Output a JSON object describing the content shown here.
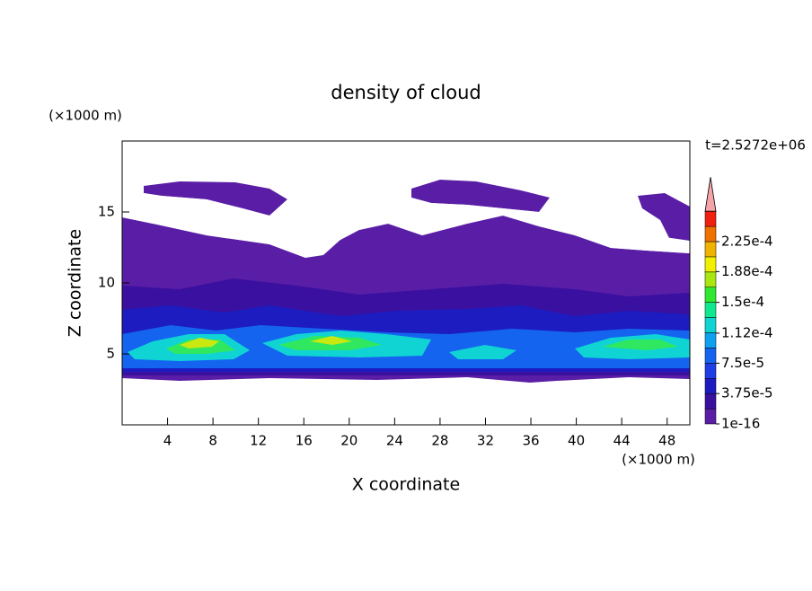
{
  "chart_data": {
    "type": "contour",
    "title": "density of cloud",
    "x_label": "X coordinate",
    "y_label": "Z coordinate",
    "x_unit": "(×1000 m)",
    "y_unit": "(×1000 m)",
    "time_label": "t=2.5272e+06",
    "xlim": [
      0,
      50
    ],
    "xticks": [
      4,
      8,
      12,
      16,
      20,
      24,
      28,
      32,
      36,
      40,
      44,
      48
    ],
    "ylim": [
      0,
      20
    ],
    "yticks": [
      5,
      10,
      15
    ],
    "colorbar": {
      "ticks": [
        {
          "value": 1e-16,
          "label": "1e-16"
        },
        {
          "value": 3.75e-05,
          "label": "3.75e-5"
        },
        {
          "value": 7.5e-05,
          "label": "7.5e-5"
        },
        {
          "value": 0.000112,
          "label": "1.12e-4"
        },
        {
          "value": 0.00015,
          "label": "1.5e-4"
        },
        {
          "value": 0.000188,
          "label": "1.88e-4"
        },
        {
          "value": 0.000225,
          "label": "2.25e-4"
        }
      ],
      "colors": [
        "#5a1ea6",
        "#3a10a0",
        "#1c1cc0",
        "#1e3ee6",
        "#1464f0",
        "#10a0f0",
        "#10d4d4",
        "#10e890",
        "#30e830",
        "#a8e810",
        "#f0f000",
        "#f0b400",
        "#f07000",
        "#f02010"
      ],
      "extend_color": "#f4a4a8"
    }
  }
}
